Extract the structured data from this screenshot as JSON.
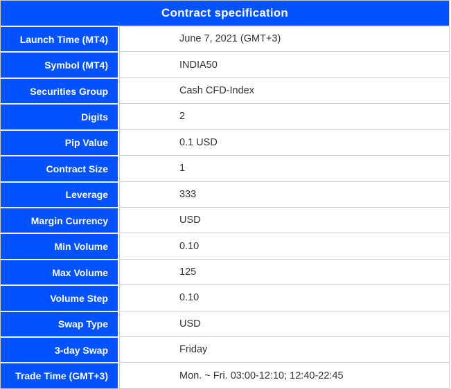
{
  "table": {
    "title": "Contract specification",
    "rows": [
      {
        "label": "Launch Time (MT4)",
        "value": "June 7, 2021 (GMT+3)"
      },
      {
        "label": "Symbol (MT4)",
        "value": "INDIA50"
      },
      {
        "label": "Securities Group",
        "value": "Cash CFD-Index"
      },
      {
        "label": "Digits",
        "value": "2"
      },
      {
        "label": "Pip Value",
        "value": "0.1 USD"
      },
      {
        "label": "Contract Size",
        "value": "1"
      },
      {
        "label": "Leverage",
        "value": "333"
      },
      {
        "label": "Margin Currency",
        "value": "USD"
      },
      {
        "label": "Min Volume",
        "value": "0.10"
      },
      {
        "label": "Max Volume",
        "value": "125"
      },
      {
        "label": "Volume Step",
        "value": "0.10"
      },
      {
        "label": "Swap Type",
        "value": "USD"
      },
      {
        "label": "3-day Swap",
        "value": "Friday"
      },
      {
        "label": "Trade Time (GMT+3)",
        "value": "Mon. ~ Fri. 03:00-12:10; 12:40-22:45"
      }
    ]
  },
  "colors": {
    "primary_blue": "#0452fe",
    "header_text": "#ffffff",
    "label_text": "#ffffff",
    "value_text": "#333333",
    "border_gray": "#cccccc",
    "label_separator": "#eef2fa"
  }
}
